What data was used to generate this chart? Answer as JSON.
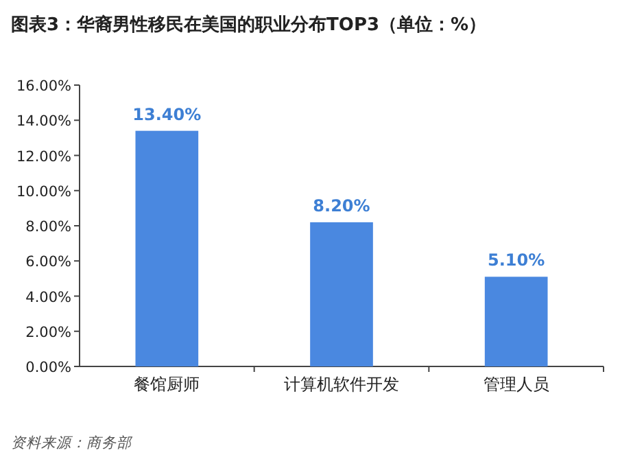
{
  "chart_data": {
    "type": "bar",
    "title": "图表3：华裔男性移民在美国的职业分布TOP3（单位：%）",
    "categories": [
      "餐馆厨师",
      "计算机软件开发",
      "管理人员"
    ],
    "values": [
      13.4,
      8.2,
      5.1
    ],
    "value_labels": [
      "13.40%",
      "8.20%",
      "5.10%"
    ],
    "color": "#4a88e0",
    "ylim": [
      0,
      16
    ],
    "yticks": [
      {
        "value": 0,
        "label": "0.00%"
      },
      {
        "value": 2,
        "label": "2.00%"
      },
      {
        "value": 4,
        "label": "4.00%"
      },
      {
        "value": 6,
        "label": "6.00%"
      },
      {
        "value": 8,
        "label": "8.00%"
      },
      {
        "value": 10,
        "label": "10.00%"
      },
      {
        "value": 12,
        "label": "12.00%"
      },
      {
        "value": 14,
        "label": "14.00%"
      },
      {
        "value": 16,
        "label": "16.00%"
      }
    ],
    "grid": false,
    "annotations": [
      "资料来源：商务部"
    ]
  }
}
